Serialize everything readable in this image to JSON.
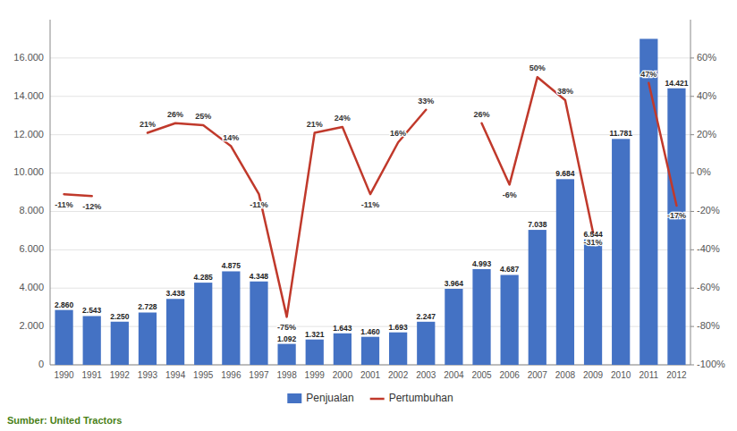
{
  "chart_data": {
    "type": "bar",
    "categories": [
      "1990",
      "1991",
      "1992",
      "1993",
      "1994",
      "1995",
      "1996",
      "1997",
      "1998",
      "1999",
      "2000",
      "2001",
      "2002",
      "2003",
      "2004",
      "2005",
      "2006",
      "2007",
      "2008",
      "2009",
      "2010",
      "2011",
      "2012"
    ],
    "series": [
      {
        "name": "Penjualan",
        "type": "bar",
        "color": "#4472C4",
        "values": [
          2860,
          2543,
          2250,
          2728,
          3438,
          4285,
          4875,
          4348,
          1092,
          1321,
          1643,
          1460,
          1693,
          2247,
          3964,
          4993,
          4687,
          7038,
          9684,
          6544,
          11781,
          17000,
          14421
        ],
        "value_labels": [
          "2.860",
          "2.543",
          "2.250",
          "2.728",
          "3.438",
          "4.285",
          "4.875",
          "4.348",
          "1.092",
          "1.321",
          "1.643",
          "1.460",
          "1.693",
          "2.247",
          "3.964",
          "4.993",
          "4.687",
          "7.038",
          "9.684",
          "6.544",
          "11.781",
          null,
          "14.421"
        ]
      },
      {
        "name": "Pertumbuhan",
        "type": "line",
        "color": "#C0392B",
        "axis": "y2",
        "values": [
          -11,
          -12,
          null,
          21,
          26,
          25,
          14,
          -11,
          -75,
          21,
          24,
          -11,
          16,
          33,
          null,
          26,
          -6,
          50,
          38,
          -31,
          null,
          47,
          -17
        ],
        "value_labels": [
          "-11%",
          "-12%",
          null,
          "21%",
          "26%",
          "25%",
          "14%",
          "-11%",
          "-75%",
          "21%",
          "24%",
          "-11%",
          "16%",
          "33%",
          null,
          "26%",
          "-6%",
          "50%",
          "38%",
          "-31%",
          null,
          "47%",
          "-17%"
        ]
      }
    ],
    "ylim": [
      0,
      18000
    ],
    "yticks": [
      0,
      {
        "value": 2000,
        "label": "2.000"
      },
      {
        "value": 4000,
        "label": "4.000"
      },
      {
        "value": 6000,
        "label": "6.000"
      },
      {
        "value": 8000,
        "label": "8.000"
      },
      {
        "value": 10000,
        "label": "10.000"
      },
      {
        "value": 12000,
        "label": "12.000"
      },
      {
        "value": 14000,
        "label": "14.000"
      },
      {
        "value": 16000,
        "label": "16.000"
      }
    ],
    "y2lim": [
      -100,
      80
    ],
    "y2ticks": [
      {
        "value": -100,
        "label": "-100%"
      },
      {
        "value": -80,
        "label": "-80%"
      },
      {
        "value": -60,
        "label": "-60%"
      },
      {
        "value": -40,
        "label": "-40%"
      },
      {
        "value": -20,
        "label": "-20%"
      },
      {
        "value": 0,
        "label": "0%"
      },
      {
        "value": 20,
        "label": "20%"
      },
      {
        "value": 40,
        "label": "40%"
      },
      {
        "value": 60,
        "label": "60%"
      }
    ],
    "grid": true,
    "legend": "bottom",
    "data_labels": true,
    "annotations": [
      "Sumber: United Tractors"
    ]
  }
}
